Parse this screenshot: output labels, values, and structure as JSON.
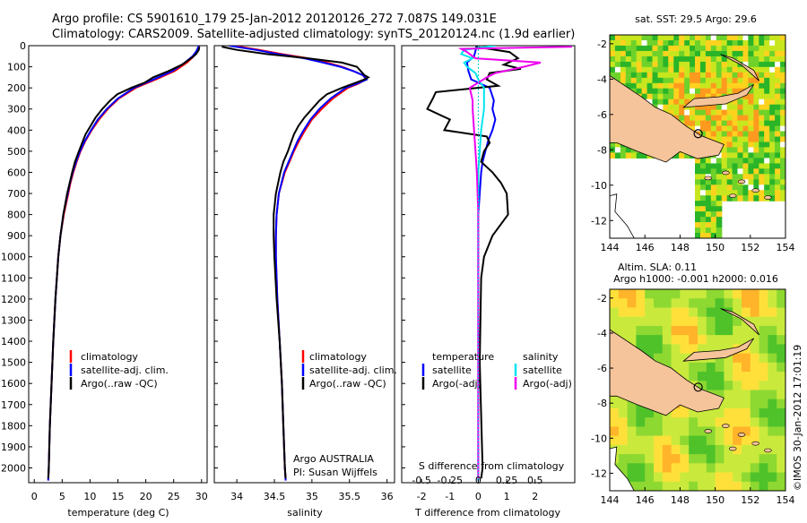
{
  "titles": {
    "line1": "Argo profile: CS 5901610_179 25-Jan-2012 20120126_272 7.087S 149.031E",
    "line2": "Climatology: CARS2009. Satellite-adjusted climatology: synTS_20120124.nc (1.9d earlier)"
  },
  "map1_title": "sat. SST: 29.5 Argo: 29.6",
  "map2_title1": "Altim. SLA: 0.11",
  "map2_title2": "Argo h1000: -0.001 h2000: 0.016",
  "credit": "©IMOS 30-Jan-2012 17:01:19",
  "notes": {
    "line1": "Argo AUSTRALIA",
    "line2": "PI: Susan Wijffels"
  },
  "colors": {
    "climatology": "#ff0000",
    "satellite": "#0000ff",
    "argo": "#000000",
    "sal_sat": "#00e5ee",
    "sal_argo": "#ee00ee",
    "land": "#f5c49b"
  },
  "chart_data": [
    {
      "type": "line",
      "xlabel": "temperature (deg C)",
      "ylabel": "",
      "xlim": [
        -1,
        31
      ],
      "ylim": [
        2070,
        0
      ],
      "xticks": [
        0,
        5,
        10,
        15,
        20,
        25,
        30
      ],
      "yticks": [
        0,
        100,
        200,
        300,
        400,
        500,
        600,
        700,
        800,
        900,
        1000,
        1100,
        1200,
        1300,
        1400,
        1500,
        1600,
        1700,
        1800,
        1900,
        2000
      ],
      "legend": [
        "climatology",
        "satellite-adj. clim.",
        "Argo(..raw -QC)"
      ],
      "series": [
        {
          "name": "climatology",
          "depth": [
            0,
            25,
            50,
            80,
            120,
            160,
            200,
            250,
            300,
            350,
            400,
            450,
            500,
            550,
            600,
            650,
            700,
            800,
            900,
            1000,
            1200,
            1400,
            1600,
            1800,
            2000,
            2060
          ],
          "values": [
            29.6,
            29.2,
            28.6,
            27.4,
            25.2,
            21.8,
            18.2,
            15.2,
            13.2,
            11.6,
            10.3,
            9.2,
            8.3,
            7.6,
            7.0,
            6.5,
            6.1,
            5.3,
            4.7,
            4.3,
            3.8,
            3.4,
            3.1,
            2.8,
            2.6,
            2.5
          ]
        },
        {
          "name": "satellite-adj. clim.",
          "depth": [
            0,
            25,
            50,
            80,
            120,
            160,
            200,
            250,
            300,
            350,
            400,
            450,
            500,
            550,
            600,
            650,
            700,
            800,
            900,
            1000,
            1200,
            1400,
            1600,
            1800,
            2000,
            2060
          ],
          "values": [
            29.5,
            29.1,
            28.4,
            27.0,
            24.8,
            21.4,
            17.9,
            15.0,
            13.0,
            11.4,
            10.2,
            9.1,
            8.2,
            7.5,
            6.9,
            6.4,
            6.0,
            5.2,
            4.7,
            4.3,
            3.8,
            3.4,
            3.1,
            2.8,
            2.6,
            2.5
          ]
        },
        {
          "name": "Argo(..raw -QC)",
          "depth": [
            5,
            20,
            40,
            60,
            90,
            120,
            150,
            175,
            200,
            230,
            260,
            300,
            340,
            380,
            420,
            460,
            500,
            550,
            600,
            700,
            800,
            900,
            1000,
            1200,
            1400,
            1600,
            1800,
            2000,
            2050
          ],
          "values": [
            29.6,
            29.5,
            29.0,
            28.1,
            26.5,
            24.1,
            21.3,
            19.8,
            17.4,
            14.9,
            13.6,
            12.2,
            11.0,
            10.1,
            9.2,
            8.6,
            8.0,
            7.3,
            6.8,
            5.9,
            5.2,
            4.7,
            4.3,
            3.8,
            3.4,
            3.1,
            2.8,
            2.6,
            2.5
          ]
        }
      ]
    },
    {
      "type": "line",
      "xlabel": "salinity",
      "ylabel": "",
      "xlim": [
        33.7,
        36.1
      ],
      "ylim": [
        2070,
        0
      ],
      "xticks": [
        34,
        34.5,
        35,
        35.5,
        36
      ],
      "legend": [
        "climatology",
        "satellite-adj. clim.",
        "Argo(..raw -QC)"
      ],
      "series": [
        {
          "name": "climatology",
          "depth": [
            0,
            20,
            40,
            60,
            80,
            100,
            120,
            140,
            160,
            180,
            200,
            250,
            300,
            350,
            400,
            450,
            500,
            550,
            600,
            700,
            800,
            900,
            1000,
            1200,
            1400,
            1600,
            1800,
            2000,
            2060
          ],
          "values": [
            33.95,
            34.3,
            34.6,
            34.95,
            35.2,
            35.4,
            35.55,
            35.68,
            35.72,
            35.62,
            35.48,
            35.28,
            35.13,
            35.0,
            34.91,
            34.83,
            34.76,
            34.7,
            34.64,
            34.56,
            34.53,
            34.52,
            34.52,
            34.54,
            34.57,
            34.6,
            34.62,
            34.64,
            34.65
          ]
        },
        {
          "name": "satellite-adj. clim.",
          "depth": [
            0,
            20,
            40,
            60,
            80,
            100,
            120,
            140,
            160,
            180,
            200,
            250,
            300,
            350,
            400,
            450,
            500,
            550,
            600,
            700,
            800,
            900,
            1000,
            1200,
            1400,
            1600,
            1800,
            2000,
            2060
          ],
          "values": [
            33.9,
            34.25,
            34.55,
            34.9,
            35.15,
            35.38,
            35.55,
            35.68,
            35.73,
            35.6,
            35.45,
            35.25,
            35.1,
            34.98,
            34.89,
            34.81,
            34.75,
            34.69,
            34.63,
            34.56,
            34.53,
            34.52,
            34.52,
            34.54,
            34.57,
            34.6,
            34.62,
            34.64,
            34.65
          ]
        },
        {
          "name": "Argo(..raw -QC)",
          "depth": [
            5,
            20,
            40,
            60,
            80,
            100,
            120,
            140,
            150,
            160,
            180,
            200,
            230,
            260,
            300,
            340,
            380,
            420,
            460,
            500,
            550,
            600,
            700,
            800,
            900,
            1000,
            1200,
            1400,
            1600,
            1800,
            2000,
            2050
          ],
          "values": [
            33.8,
            34.0,
            34.4,
            34.95,
            35.4,
            35.6,
            35.65,
            35.7,
            35.75,
            35.7,
            35.55,
            35.4,
            35.2,
            35.1,
            35.0,
            34.9,
            34.82,
            34.76,
            34.72,
            34.68,
            34.62,
            34.58,
            34.52,
            34.49,
            34.49,
            34.5,
            34.53,
            34.57,
            34.6,
            34.62,
            34.64,
            34.65
          ]
        }
      ]
    },
    {
      "type": "line",
      "xlabel": "T difference from climatology",
      "xlabel_top": "S difference from climatology",
      "xlim": [
        -2.7,
        3.4
      ],
      "ylim": [
        2070,
        0
      ],
      "xticks": [
        -2,
        -1,
        0,
        1,
        2
      ],
      "xticks_top_positions": [
        -2,
        -1,
        0,
        1,
        2
      ],
      "xticks_top_labels": [
        "-0.5",
        "-0.25",
        "0",
        "0.25",
        "0.5"
      ],
      "legend_titles": [
        "temperature",
        "salinity"
      ],
      "legend": [
        "satellite",
        "Argo(-adj)",
        "satellite",
        "Argo(-adj)"
      ],
      "series": [
        {
          "name": "satellite",
          "group": "temperature",
          "depth": [
            0,
            50,
            80,
            120,
            160,
            200,
            260,
            300,
            350,
            400,
            450,
            500,
            550,
            600,
            700,
            800,
            1000,
            1500,
            2000,
            2060
          ],
          "values": [
            -0.05,
            -0.15,
            -0.4,
            -0.35,
            -0.25,
            0.4,
            0.55,
            0.5,
            0.6,
            0.5,
            0.35,
            0.25,
            0.15,
            0.1,
            0.05,
            0.0,
            0.0,
            0.0,
            0.0,
            0.0
          ]
        },
        {
          "name": "Argo(-adj)",
          "group": "temperature",
          "depth": [
            5,
            30,
            60,
            90,
            110,
            130,
            160,
            190,
            220,
            250,
            300,
            350,
            400,
            430,
            460,
            500,
            550,
            600,
            650,
            700,
            800,
            900,
            1000,
            1100,
            1500,
            2000,
            2050
          ],
          "values": [
            -0.1,
            1.1,
            1.4,
            0.9,
            1.5,
            0.4,
            0.3,
            0.7,
            -1.5,
            -1.6,
            -1.8,
            -1.0,
            -1.2,
            0.3,
            0.4,
            0.2,
            0.1,
            0.5,
            0.8,
            1.0,
            1.05,
            0.5,
            0.2,
            0.1,
            0.05,
            0.15,
            0.1
          ]
        },
        {
          "name": "satellite",
          "group": "salinity",
          "depth": [
            0,
            20,
            40,
            60,
            80,
            100,
            130,
            160,
            200,
            300,
            400,
            500,
            600,
            800,
            1000,
            1500,
            2000,
            2060
          ],
          "values": [
            0.6,
            -0.5,
            -0.6,
            -0.2,
            -0.5,
            -0.4,
            -0.1,
            0.0,
            0.2,
            0.2,
            0.1,
            0.05,
            0.0,
            0.0,
            0.0,
            0.0,
            0.0,
            0.0
          ]
        },
        {
          "name": "Argo(-adj)",
          "group": "salinity",
          "depth": [
            5,
            15,
            30,
            60,
            80,
            100,
            130,
            150,
            200,
            260,
            300,
            400,
            500,
            600,
            800,
            1000,
            1500,
            2000,
            2050
          ],
          "values": [
            3.3,
            -0.6,
            -0.4,
            -0.1,
            2.2,
            1.6,
            0.6,
            0.3,
            -0.3,
            -0.2,
            -0.2,
            -0.15,
            -0.1,
            -0.05,
            0.0,
            0.0,
            0.0,
            0.0,
            0.0
          ]
        }
      ]
    },
    {
      "type": "heatmap",
      "title": "sat. SST: 29.5 Argo: 29.6",
      "xlim": [
        144,
        154
      ],
      "ylim": [
        -13,
        -1.5
      ],
      "xticks": [
        144,
        146,
        148,
        150,
        152,
        154
      ],
      "yticks": [
        -2,
        -4,
        -6,
        -8,
        -10,
        -12
      ],
      "marker": {
        "lon": 149.031,
        "lat": -7.087
      }
    },
    {
      "type": "heatmap",
      "title": "Altim. SLA: 0.11",
      "xlim": [
        144,
        154
      ],
      "ylim": [
        -13,
        -1.5
      ],
      "xticks": [
        144,
        146,
        148,
        150,
        152,
        154
      ],
      "yticks": [
        -2,
        -4,
        -6,
        -8,
        -10,
        -12
      ],
      "marker": {
        "lon": 149.031,
        "lat": -7.087
      }
    }
  ]
}
